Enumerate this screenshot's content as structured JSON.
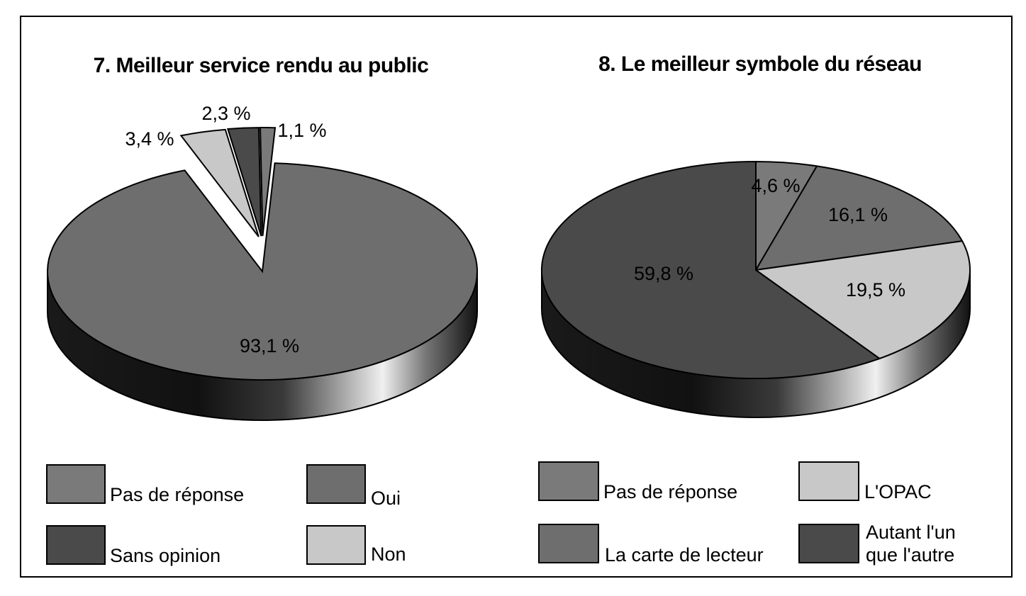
{
  "chart_data": [
    {
      "type": "pie",
      "title": "7. Meilleur service rendu au public",
      "slices": [
        {
          "label": "Oui",
          "value": 93.1,
          "value_label": "93,1 %",
          "color": "#6e6e6e"
        },
        {
          "label": "Non",
          "value": 3.4,
          "value_label": "3,4 %",
          "color": "#c8c8c8"
        },
        {
          "label": "Sans opinion",
          "value": 2.3,
          "value_label": "2,3 %",
          "color": "#4a4a4a"
        },
        {
          "label": "Pas de réponse",
          "value": 1.1,
          "value_label": "1,1 %",
          "color": "#7a7a7a"
        }
      ],
      "legend": [
        "Pas de réponse",
        "Oui",
        "Sans opinion",
        "Non"
      ],
      "legend_colors": [
        "#7a7a7a",
        "#6e6e6e",
        "#4a4a4a",
        "#c8c8c8"
      ],
      "legend_placement": "bottom"
    },
    {
      "type": "pie",
      "title": "8. Le meilleur symbole du réseau",
      "slices": [
        {
          "label": "Pas de réponse",
          "value": 4.6,
          "value_label": "4,6 %",
          "color": "#7a7a7a"
        },
        {
          "label": "La carte de lecteur",
          "value": 16.1,
          "value_label": "16,1 %",
          "color": "#6e6e6e"
        },
        {
          "label": "L'OPAC",
          "value": 19.5,
          "value_label": "19,5 %",
          "color": "#c8c8c8"
        },
        {
          "label": "Autant l'un que l'autre",
          "value": 59.8,
          "value_label": "59,8 %",
          "color": "#4a4a4a"
        }
      ],
      "legend": [
        "Pas de réponse",
        "L'OPAC",
        "La carte de lecteur",
        "Autant l'un que l'autre"
      ],
      "legend_colors": [
        "#7a7a7a",
        "#c8c8c8",
        "#6e6e6e",
        "#4a4a4a"
      ],
      "legend_placement": "bottom"
    }
  ]
}
